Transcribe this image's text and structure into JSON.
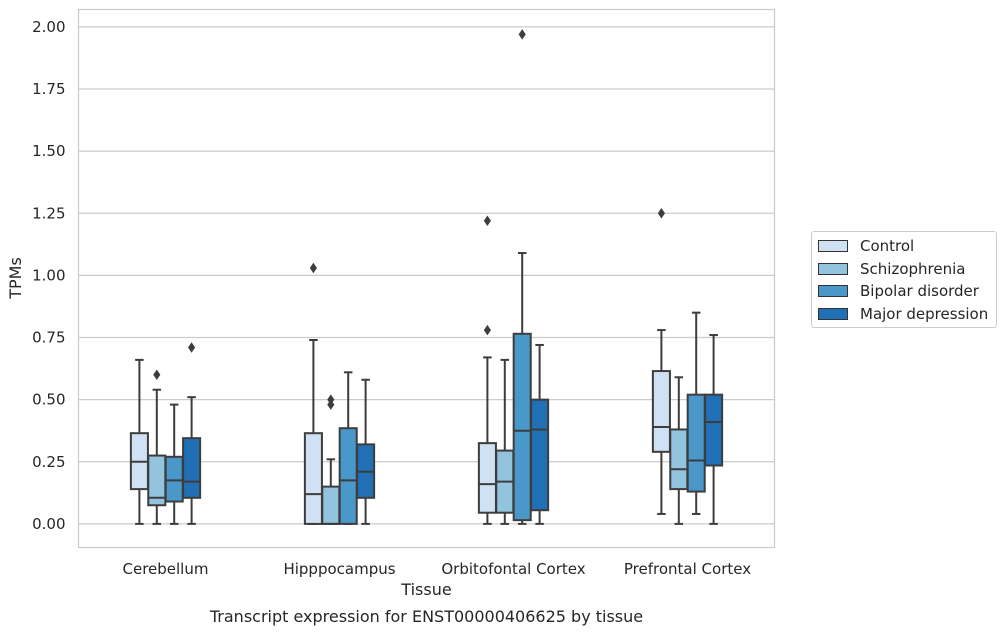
{
  "chart_data": {
    "type": "box",
    "title": "Transcript expression for ENST00000406625 by tissue",
    "xlabel": "Tissue",
    "ylabel": "TPMs",
    "ylim": [
      -0.095,
      2.07
    ],
    "yticks": [
      "0.00",
      "0.25",
      "0.50",
      "0.75",
      "1.00",
      "1.25",
      "1.50",
      "1.75",
      "2.00"
    ],
    "ytick_values": [
      0,
      0.25,
      0.5,
      0.75,
      1.0,
      1.25,
      1.5,
      1.75,
      2.0
    ],
    "grid": "horizontal",
    "legend_position": "right",
    "categories": [
      "Cerebellum",
      "Hipppocampus",
      "Orbitofontal Cortex",
      "Prefrontal Cortex"
    ],
    "series": [
      {
        "name": "Control",
        "color": "#cfe1f2",
        "boxes": [
          {
            "whislo": 0.0,
            "q1": 0.14,
            "med": 0.25,
            "q3": 0.365,
            "whishi": 0.66,
            "fliers": []
          },
          {
            "whislo": 0.0,
            "q1": 0.0,
            "med": 0.12,
            "q3": 0.365,
            "whishi": 0.74,
            "fliers": [
              1.03
            ]
          },
          {
            "whislo": 0.0,
            "q1": 0.045,
            "med": 0.16,
            "q3": 0.325,
            "whishi": 0.67,
            "fliers": [
              0.78,
              1.22
            ]
          },
          {
            "whislo": 0.04,
            "q1": 0.29,
            "med": 0.39,
            "q3": 0.615,
            "whishi": 0.78,
            "fliers": [
              1.25
            ]
          }
        ]
      },
      {
        "name": "Schizophrenia",
        "color": "#93c4de",
        "boxes": [
          {
            "whislo": 0.0,
            "q1": 0.075,
            "med": 0.105,
            "q3": 0.275,
            "whishi": 0.54,
            "fliers": [
              0.6
            ]
          },
          {
            "whislo": 0.0,
            "q1": 0.0,
            "med": 0.0,
            "q3": 0.15,
            "whishi": 0.26,
            "fliers": [
              0.48,
              0.5
            ]
          },
          {
            "whislo": 0.0,
            "q1": 0.045,
            "med": 0.17,
            "q3": 0.295,
            "whishi": 0.66,
            "fliers": []
          },
          {
            "whislo": 0.0,
            "q1": 0.14,
            "med": 0.22,
            "q3": 0.38,
            "whishi": 0.59,
            "fliers": []
          }
        ]
      },
      {
        "name": "Bipolar disorder",
        "color": "#4a98c9",
        "boxes": [
          {
            "whislo": 0.0,
            "q1": 0.09,
            "med": 0.175,
            "q3": 0.27,
            "whishi": 0.48,
            "fliers": []
          },
          {
            "whislo": 0.0,
            "q1": 0.0,
            "med": 0.175,
            "q3": 0.385,
            "whishi": 0.61,
            "fliers": []
          },
          {
            "whislo": 0.0,
            "q1": 0.015,
            "med": 0.375,
            "q3": 0.765,
            "whishi": 1.09,
            "fliers": [
              1.97
            ]
          },
          {
            "whislo": 0.04,
            "q1": 0.13,
            "med": 0.255,
            "q3": 0.52,
            "whishi": 0.85,
            "fliers": []
          }
        ]
      },
      {
        "name": "Major depression",
        "color": "#2170b5",
        "boxes": [
          {
            "whislo": 0.0,
            "q1": 0.105,
            "med": 0.17,
            "q3": 0.345,
            "whishi": 0.51,
            "fliers": [
              0.71
            ]
          },
          {
            "whislo": 0.0,
            "q1": 0.105,
            "med": 0.21,
            "q3": 0.32,
            "whishi": 0.58,
            "fliers": []
          },
          {
            "whislo": 0.0,
            "q1": 0.055,
            "med": 0.38,
            "q3": 0.5,
            "whishi": 0.72,
            "fliers": []
          },
          {
            "whislo": 0.0,
            "q1": 0.235,
            "med": 0.41,
            "q3": 0.52,
            "whishi": 0.76,
            "fliers": []
          }
        ]
      }
    ]
  }
}
